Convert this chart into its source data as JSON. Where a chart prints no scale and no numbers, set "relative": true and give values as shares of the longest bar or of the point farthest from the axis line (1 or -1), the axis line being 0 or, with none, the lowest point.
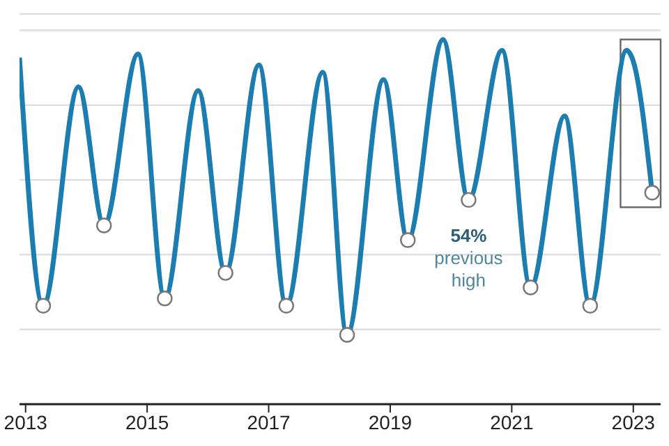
{
  "chart_data": {
    "type": "line",
    "relative": true,
    "x": [
      2012.9,
      2013.29,
      2013.87,
      2014.29,
      2014.85,
      2015.29,
      2015.84,
      2016.29,
      2016.84,
      2017.29,
      2017.89,
      2018.29,
      2018.89,
      2019.29,
      2019.87,
      2020.29,
      2020.84,
      2021.31,
      2021.87,
      2022.29,
      2022.89,
      2023.0,
      2023.31
    ],
    "series": [
      {
        "color": "#1b7db0",
        "marker": "none",
        "values": [
          0.95,
          0.27,
          0.87,
          0.49,
          0.96,
          0.29,
          0.86,
          0.36,
          0.93,
          0.27,
          0.91,
          0.19,
          0.89,
          0.45,
          1.0,
          0.56,
          0.97,
          0.32,
          0.79,
          0.27,
          0.97,
          0.94,
          0.58
        ]
      },
      {
        "type": "scatter",
        "color": "#ffffff",
        "marker": "circle",
        "x": [
          2013.29,
          2014.29,
          2015.29,
          2016.29,
          2017.29,
          2018.29,
          2019.29,
          2020.29,
          2021.31,
          2022.29,
          2023.31
        ],
        "values": [
          0.27,
          0.49,
          0.29,
          0.36,
          0.27,
          0.19,
          0.45,
          0.56,
          0.32,
          0.27,
          0.58
        ]
      }
    ],
    "xlim": [
      2012.9,
      2023.45
    ],
    "xticks": [
      2013,
      2015,
      2017,
      2019,
      2021,
      2023
    ],
    "grid": "y",
    "annotations": [
      {
        "text": "54%\nprevious\nhigh",
        "x": 2020.29,
        "y": 0.56
      }
    ]
  }
}
